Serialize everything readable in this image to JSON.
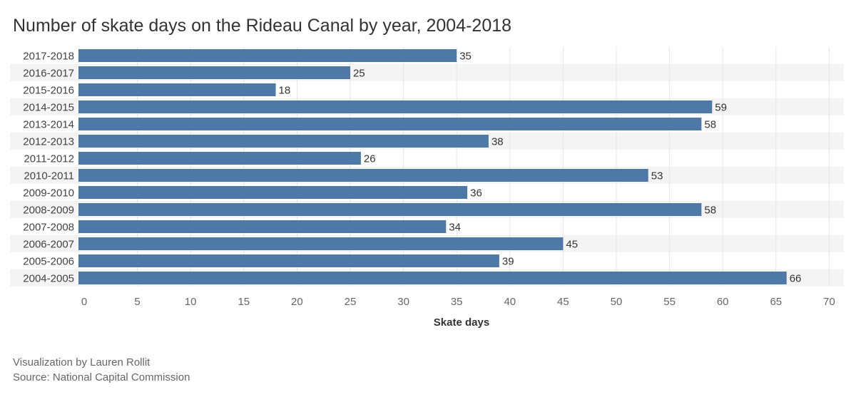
{
  "chart_data": {
    "type": "bar",
    "orientation": "horizontal",
    "title": "Number of skate days on the Rideau Canal by year, 2004-2018",
    "xlabel": "Skate days",
    "ylabel": "",
    "xlim": [
      0,
      70
    ],
    "x_ticks": [
      0,
      5,
      10,
      15,
      20,
      25,
      30,
      35,
      40,
      45,
      50,
      55,
      60,
      65,
      70
    ],
    "categories": [
      "2017-2018",
      "2016-2017",
      "2015-2016",
      "2014-2015",
      "2013-2014",
      "2012-2013",
      "2011-2012",
      "2010-2011",
      "2009-2010",
      "2008-2009",
      "2007-2008",
      "2006-2007",
      "2005-2006",
      "2004-2005"
    ],
    "values": [
      35,
      25,
      18,
      59,
      58,
      38,
      26,
      53,
      36,
      58,
      34,
      45,
      39,
      66
    ],
    "bar_color": "#4e79a7",
    "band_color": "#f4f4f4",
    "grid": true,
    "data_labels": true
  },
  "footer": {
    "credit": "Visualization by Lauren Rollit",
    "source": "Source: National Capital Commission"
  }
}
